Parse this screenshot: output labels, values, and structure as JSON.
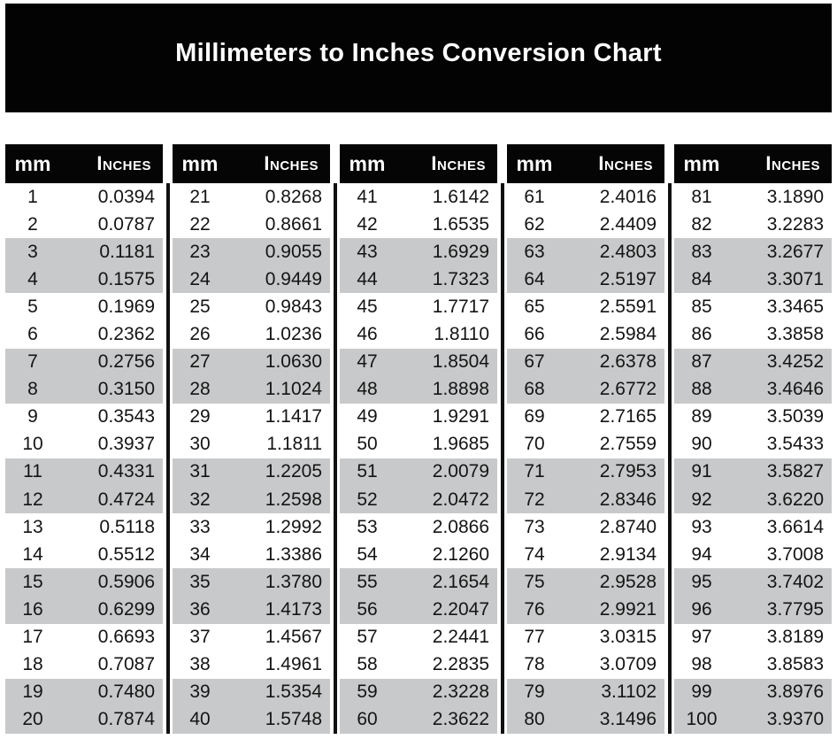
{
  "title": "Millimeters to Inches Conversion Chart",
  "colors": {
    "banner_bg": "#030303",
    "header_bg": "#050505",
    "header_text": "#ffffff",
    "title_text": "#ffffff",
    "body_text": "#141414",
    "stripe": "#c8c9ca",
    "divider": "#101010",
    "page_bg": "#ffffff"
  },
  "chart_data": {
    "type": "table",
    "title": "Millimeters to Inches Conversion Chart",
    "column_headers": {
      "mm": "mm",
      "inches": "Inches"
    },
    "row_shading": "rows 3-4 of every group of 4 rows are shaded gray (pairs 3-4, 7-8, 11-12, 15-16, 19-20)",
    "column_groups": [
      {
        "rows": [
          {
            "mm": "1",
            "in": "0.0394"
          },
          {
            "mm": "2",
            "in": "0.0787"
          },
          {
            "mm": "3",
            "in": "0.1181"
          },
          {
            "mm": "4",
            "in": "0.1575"
          },
          {
            "mm": "5",
            "in": "0.1969"
          },
          {
            "mm": "6",
            "in": "0.2362"
          },
          {
            "mm": "7",
            "in": "0.2756"
          },
          {
            "mm": "8",
            "in": "0.3150"
          },
          {
            "mm": "9",
            "in": "0.3543"
          },
          {
            "mm": "10",
            "in": "0.3937"
          },
          {
            "mm": "11",
            "in": "0.4331"
          },
          {
            "mm": "12",
            "in": "0.4724"
          },
          {
            "mm": "13",
            "in": "0.5118"
          },
          {
            "mm": "14",
            "in": "0.5512"
          },
          {
            "mm": "15",
            "in": "0.5906"
          },
          {
            "mm": "16",
            "in": "0.6299"
          },
          {
            "mm": "17",
            "in": "0.6693"
          },
          {
            "mm": "18",
            "in": "0.7087"
          },
          {
            "mm": "19",
            "in": "0.7480"
          },
          {
            "mm": "20",
            "in": "0.7874"
          }
        ]
      },
      {
        "rows": [
          {
            "mm": "21",
            "in": "0.8268"
          },
          {
            "mm": "22",
            "in": "0.8661"
          },
          {
            "mm": "23",
            "in": "0.9055"
          },
          {
            "mm": "24",
            "in": "0.9449"
          },
          {
            "mm": "25",
            "in": "0.9843"
          },
          {
            "mm": "26",
            "in": "1.0236"
          },
          {
            "mm": "27",
            "in": "1.0630"
          },
          {
            "mm": "28",
            "in": "1.1024"
          },
          {
            "mm": "29",
            "in": "1.1417"
          },
          {
            "mm": "30",
            "in": "1.1811"
          },
          {
            "mm": "31",
            "in": "1.2205"
          },
          {
            "mm": "32",
            "in": "1.2598"
          },
          {
            "mm": "33",
            "in": "1.2992"
          },
          {
            "mm": "34",
            "in": "1.3386"
          },
          {
            "mm": "35",
            "in": "1.3780"
          },
          {
            "mm": "36",
            "in": "1.4173"
          },
          {
            "mm": "37",
            "in": "1.4567"
          },
          {
            "mm": "38",
            "in": "1.4961"
          },
          {
            "mm": "39",
            "in": "1.5354"
          },
          {
            "mm": "40",
            "in": "1.5748"
          }
        ]
      },
      {
        "rows": [
          {
            "mm": "41",
            "in": "1.6142"
          },
          {
            "mm": "42",
            "in": "1.6535"
          },
          {
            "mm": "43",
            "in": "1.6929"
          },
          {
            "mm": "44",
            "in": "1.7323"
          },
          {
            "mm": "45",
            "in": "1.7717"
          },
          {
            "mm": "46",
            "in": "1.8110"
          },
          {
            "mm": "47",
            "in": "1.8504"
          },
          {
            "mm": "48",
            "in": "1.8898"
          },
          {
            "mm": "49",
            "in": "1.9291"
          },
          {
            "mm": "50",
            "in": "1.9685"
          },
          {
            "mm": "51",
            "in": "2.0079"
          },
          {
            "mm": "52",
            "in": "2.0472"
          },
          {
            "mm": "53",
            "in": "2.0866"
          },
          {
            "mm": "54",
            "in": "2.1260"
          },
          {
            "mm": "55",
            "in": "2.1654"
          },
          {
            "mm": "56",
            "in": "2.2047"
          },
          {
            "mm": "57",
            "in": "2.2441"
          },
          {
            "mm": "58",
            "in": "2.2835"
          },
          {
            "mm": "59",
            "in": "2.3228"
          },
          {
            "mm": "60",
            "in": "2.3622"
          }
        ]
      },
      {
        "rows": [
          {
            "mm": "61",
            "in": "2.4016"
          },
          {
            "mm": "62",
            "in": "2.4409"
          },
          {
            "mm": "63",
            "in": "2.4803"
          },
          {
            "mm": "64",
            "in": "2.5197"
          },
          {
            "mm": "65",
            "in": "2.5591"
          },
          {
            "mm": "66",
            "in": "2.5984"
          },
          {
            "mm": "67",
            "in": "2.6378"
          },
          {
            "mm": "68",
            "in": "2.6772"
          },
          {
            "mm": "69",
            "in": "2.7165"
          },
          {
            "mm": "70",
            "in": "2.7559"
          },
          {
            "mm": "71",
            "in": "2.7953"
          },
          {
            "mm": "72",
            "in": "2.8346"
          },
          {
            "mm": "73",
            "in": "2.8740"
          },
          {
            "mm": "74",
            "in": "2.9134"
          },
          {
            "mm": "75",
            "in": "2.9528"
          },
          {
            "mm": "76",
            "in": "2.9921"
          },
          {
            "mm": "77",
            "in": "3.0315"
          },
          {
            "mm": "78",
            "in": "3.0709"
          },
          {
            "mm": "79",
            "in": "3.1102"
          },
          {
            "mm": "80",
            "in": "3.1496"
          }
        ]
      },
      {
        "rows": [
          {
            "mm": "81",
            "in": "3.1890"
          },
          {
            "mm": "82",
            "in": "3.2283"
          },
          {
            "mm": "83",
            "in": "3.2677"
          },
          {
            "mm": "84",
            "in": "3.3071"
          },
          {
            "mm": "85",
            "in": "3.3465"
          },
          {
            "mm": "86",
            "in": "3.3858"
          },
          {
            "mm": "87",
            "in": "3.4252"
          },
          {
            "mm": "88",
            "in": "3.4646"
          },
          {
            "mm": "89",
            "in": "3.5039"
          },
          {
            "mm": "90",
            "in": "3.5433"
          },
          {
            "mm": "91",
            "in": "3.5827"
          },
          {
            "mm": "92",
            "in": "3.6220"
          },
          {
            "mm": "93",
            "in": "3.6614"
          },
          {
            "mm": "94",
            "in": "3.7008"
          },
          {
            "mm": "95",
            "in": "3.7402"
          },
          {
            "mm": "96",
            "in": "3.7795"
          },
          {
            "mm": "97",
            "in": "3.8189"
          },
          {
            "mm": "98",
            "in": "3.8583"
          },
          {
            "mm": "99",
            "in": "3.8976"
          },
          {
            "mm": "100",
            "in": "3.9370"
          }
        ]
      }
    ]
  }
}
